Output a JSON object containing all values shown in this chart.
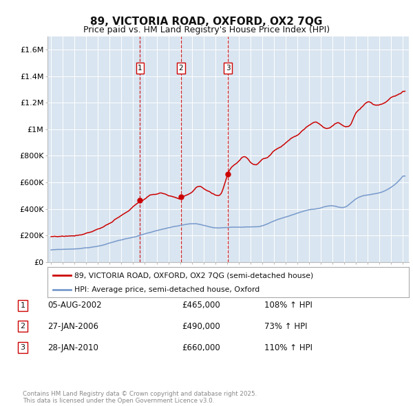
{
  "title": "89, VICTORIA ROAD, OXFORD, OX2 7QG",
  "subtitle": "Price paid vs. HM Land Registry's House Price Index (HPI)",
  "background_color": "#ffffff",
  "plot_bg_color": "#d9e5f0",
  "grid_color": "#ffffff",
  "ylim": [
    0,
    1700000
  ],
  "yticks": [
    0,
    200000,
    400000,
    600000,
    800000,
    1000000,
    1200000,
    1400000,
    1600000
  ],
  "ytick_labels": [
    "£0",
    "£200K",
    "£400K",
    "£600K",
    "£800K",
    "£1M",
    "£1.2M",
    "£1.4M",
    "£1.6M"
  ],
  "sale_color": "#cc0000",
  "hpi_color": "#7799cc",
  "legend_sale_label": "89, VICTORIA ROAD, OXFORD, OX2 7QG (semi-detached house)",
  "legend_hpi_label": "HPI: Average price, semi-detached house, Oxford",
  "transactions": [
    {
      "num": 1,
      "date": "05-AUG-2002",
      "price": "£465,000",
      "pct": "108% ↑ HPI"
    },
    {
      "num": 2,
      "date": "27-JAN-2006",
      "price": "£490,000",
      "pct": "73% ↑ HPI"
    },
    {
      "num": 3,
      "date": "28-JAN-2010",
      "price": "£660,000",
      "pct": "110% ↑ HPI"
    }
  ],
  "vline_dates": [
    2002.59,
    2006.07,
    2010.07
  ],
  "sale_points": [
    [
      2002.59,
      465000
    ],
    [
      2006.07,
      490000
    ],
    [
      2010.07,
      660000
    ]
  ],
  "footer": "Contains HM Land Registry data © Crown copyright and database right 2025.\nThis data is licensed under the Open Government Licence v3.0."
}
